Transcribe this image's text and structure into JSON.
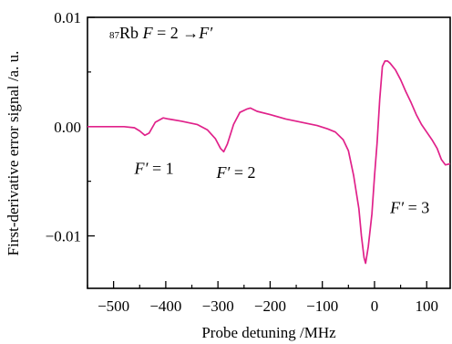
{
  "chart_data": {
    "type": "line",
    "title": "",
    "xlabel": "Probe detuning /MHz",
    "ylabel": "First-derivative error signal /a. u.",
    "xlim": [
      -550,
      145
    ],
    "ylim": [
      -0.0148,
      0.01
    ],
    "x_ticks": [
      -500,
      -400,
      -300,
      -200,
      -100,
      0,
      100
    ],
    "y_ticks": [
      0.01,
      0.0,
      -0.01
    ],
    "x_tick_labels": [
      "−500",
      "−400",
      "−300",
      "−200",
      "−100",
      "0",
      "100"
    ],
    "y_tick_labels": [
      "0.01",
      "0.00",
      "−0.01"
    ],
    "grid": false,
    "series": [
      {
        "color": "#e0218a",
        "x": [
          -550,
          -520,
          -480,
          -460,
          -450,
          -440,
          -432,
          -420,
          -405,
          -395,
          -370,
          -340,
          -320,
          -305,
          -295,
          -289,
          -282,
          -270,
          -258,
          -245,
          -238,
          -225,
          -200,
          -170,
          -150,
          -130,
          -110,
          -90,
          -75,
          -60,
          -50,
          -40,
          -30,
          -25,
          -20,
          -17,
          -12,
          -5,
          0,
          5,
          10,
          15,
          20,
          25,
          30,
          40,
          50,
          60,
          70,
          80,
          90,
          100,
          110,
          120,
          128,
          136,
          145
        ],
        "y": [
          0.0,
          0.0,
          0.0,
          -0.0001,
          -0.0004,
          -0.0008,
          -0.0006,
          0.0004,
          0.0008,
          0.0007,
          0.0005,
          0.0002,
          -0.0003,
          -0.0011,
          -0.002,
          -0.0023,
          -0.0016,
          0.0002,
          0.0013,
          0.0016,
          0.0017,
          0.0014,
          0.0011,
          0.0007,
          0.0005,
          0.0003,
          0.0001,
          -0.0002,
          -0.0005,
          -0.0012,
          -0.0022,
          -0.0045,
          -0.0075,
          -0.01,
          -0.012,
          -0.0125,
          -0.011,
          -0.008,
          -0.0045,
          -0.0015,
          0.0025,
          0.0055,
          0.006,
          0.006,
          0.0058,
          0.0052,
          0.0043,
          0.0032,
          0.0022,
          0.0011,
          0.0002,
          -0.0005,
          -0.0012,
          -0.002,
          -0.003,
          -0.0035,
          -0.0034
        ]
      }
    ],
    "annotations": [
      {
        "id": "title-annot",
        "x": -508,
        "y": 0.0075,
        "parts": [
          {
            "text": "87",
            "sup": true
          },
          {
            "text": "Rb "
          },
          {
            "text": "F",
            "italic": true
          },
          {
            "text": " = 2 "
          },
          {
            "text": "→",
            "arrow": true
          },
          {
            "text": "F′",
            "italic": true
          }
        ]
      },
      {
        "id": "f1-label",
        "x": -460,
        "y": -0.0043,
        "parts": [
          {
            "text": "F′",
            "italic": true
          },
          {
            "text": " = 1"
          }
        ]
      },
      {
        "id": "f2-label",
        "x": -303,
        "y": -0.0047,
        "parts": [
          {
            "text": "F′",
            "italic": true
          },
          {
            "text": " = 2"
          }
        ]
      },
      {
        "id": "f3-label",
        "x": 30,
        "y": -0.0079,
        "parts": [
          {
            "text": "F′",
            "italic": true
          },
          {
            "text": " = 3"
          }
        ]
      }
    ]
  }
}
